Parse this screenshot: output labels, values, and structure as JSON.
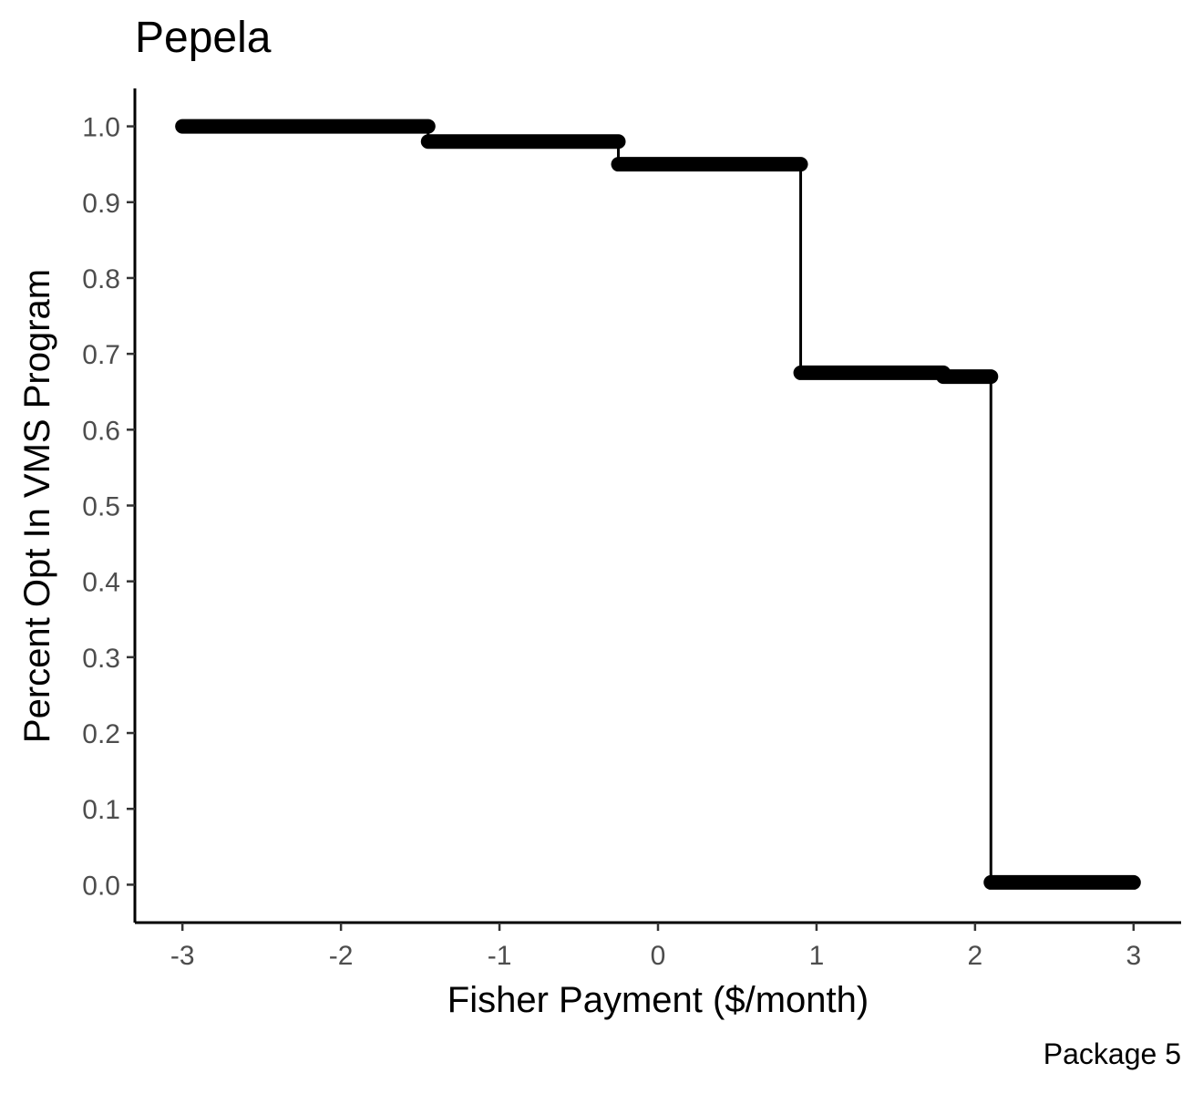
{
  "chart_data": {
    "type": "line",
    "title": "Pepela",
    "caption": "Package 5",
    "xlabel": "Fisher Payment ($/month)",
    "ylabel": "Percent Opt In VMS Program",
    "xlim": [
      -3.3,
      3.3
    ],
    "ylim": [
      -0.05,
      1.05
    ],
    "x_ticks": [
      -3,
      -2,
      -1,
      0,
      1,
      2,
      3
    ],
    "x_tick_labels": [
      "-3",
      "-2",
      "-1",
      "0",
      "1",
      "2",
      "3"
    ],
    "y_ticks": [
      0.0,
      0.1,
      0.2,
      0.3,
      0.4,
      0.5,
      0.6,
      0.7,
      0.8,
      0.9,
      1.0
    ],
    "y_tick_labels": [
      "0.0",
      "0.1",
      "0.2",
      "0.3",
      "0.4",
      "0.5",
      "0.6",
      "0.7",
      "0.8",
      "0.9",
      "1.0"
    ],
    "grid": false,
    "legend": "none",
    "color": "#000000",
    "series": [
      {
        "segments": [
          {
            "x_start": -3.0,
            "x_end": -1.45,
            "y": 1.0
          },
          {
            "x_start": -1.45,
            "x_end": -0.25,
            "y": 0.98
          },
          {
            "x_start": -0.25,
            "x_end": 0.9,
            "y": 0.95
          },
          {
            "x_start": 0.9,
            "x_end": 1.8,
            "y": 0.675
          },
          {
            "x_start": 1.8,
            "x_end": 2.1,
            "y": 0.67
          },
          {
            "x_start": 2.1,
            "x_end": 3.0,
            "y": 0.003
          }
        ]
      }
    ]
  }
}
